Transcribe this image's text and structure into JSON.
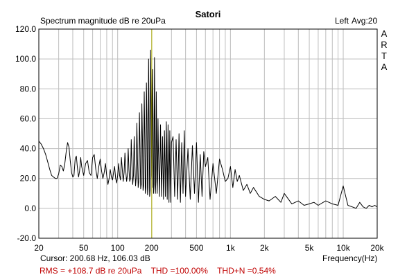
{
  "header": {
    "title": "Satori",
    "channel": "Left",
    "average": "Avg:20",
    "brand_letters": [
      "A",
      "R",
      "T",
      "A"
    ]
  },
  "cursor_readout": "Cursor: 200.68 Hz, 106.03 dB",
  "stats": {
    "rms": "RMS = +108.7 dB re 20uPa",
    "thd": "THD =100.00%",
    "thdn": "THD+N =0.54%"
  },
  "colors": {
    "trace": "#000000",
    "cursor": "#b4b400",
    "grid": "#bebebe",
    "stats_text": "#c00000"
  },
  "chart_data": {
    "type": "line",
    "title": "Satori",
    "ylabel": "Spectrum magnitude dB re 20uPa",
    "xlabel": "Frequency(Hz)",
    "x_scale": "log",
    "xlim": [
      20,
      20000
    ],
    "ylim": [
      -20,
      120
    ],
    "grid": true,
    "xticks": [
      {
        "value": 20,
        "label": "20"
      },
      {
        "value": 50,
        "label": "50"
      },
      {
        "value": 100,
        "label": "100"
      },
      {
        "value": 200,
        "label": "200"
      },
      {
        "value": 500,
        "label": "500"
      },
      {
        "value": 1000,
        "label": "1k"
      },
      {
        "value": 2000,
        "label": "2k"
      },
      {
        "value": 5000,
        "label": "5k"
      },
      {
        "value": 10000,
        "label": "10k"
      },
      {
        "value": 20000,
        "label": "20k"
      }
    ],
    "yticks": [
      {
        "value": 120,
        "label": "120.0"
      },
      {
        "value": 100,
        "label": "100.0"
      },
      {
        "value": 80,
        "label": "80.0"
      },
      {
        "value": 60,
        "label": "60.0"
      },
      {
        "value": 40,
        "label": "40.0"
      },
      {
        "value": 20,
        "label": "20.0"
      },
      {
        "value": 0,
        "label": "0.0"
      },
      {
        "value": -20,
        "label": "-20.0"
      }
    ],
    "cursor": {
      "x": 200.68,
      "y": 106.03
    },
    "series": [
      {
        "x": [
          20,
          21,
          22,
          23,
          24,
          25,
          26,
          27,
          28,
          29,
          30,
          31,
          32,
          33,
          34,
          35,
          36,
          37,
          38,
          39,
          40,
          41,
          42,
          43,
          44,
          45,
          46,
          47,
          48,
          50,
          52,
          54,
          56,
          58,
          60,
          62,
          64,
          66,
          68,
          70,
          72,
          74,
          76,
          78,
          80,
          82,
          84,
          86,
          88,
          90,
          92,
          94,
          96,
          98,
          100,
          102,
          104,
          106,
          108,
          110,
          112,
          114,
          116,
          118,
          120,
          122,
          124,
          126,
          128,
          130,
          132,
          134,
          136,
          138,
          140,
          142,
          144,
          146,
          148,
          150,
          152,
          154,
          156,
          158,
          160,
          162,
          164,
          166,
          168,
          170,
          172,
          174,
          176,
          178,
          180,
          182,
          184,
          186,
          188,
          190,
          192,
          194,
          196,
          198,
          200,
          202,
          204,
          206,
          208,
          210,
          212,
          214,
          216,
          218,
          220,
          222,
          224,
          226,
          228,
          230,
          235,
          240,
          245,
          250,
          255,
          260,
          265,
          270,
          275,
          280,
          285,
          290,
          295,
          300,
          310,
          320,
          330,
          340,
          350,
          360,
          370,
          380,
          390,
          400,
          420,
          440,
          460,
          480,
          500,
          520,
          540,
          560,
          580,
          600,
          630,
          660,
          700,
          750,
          800,
          850,
          900,
          950,
          1000,
          1050,
          1100,
          1150,
          1200,
          1300,
          1400,
          1500,
          1600,
          1800,
          2000,
          2200,
          2500,
          2800,
          3000,
          3500,
          4000,
          4500,
          5000,
          5500,
          6000,
          7000,
          8000,
          9000,
          10000,
          11000,
          12000,
          13000,
          14000,
          15000,
          16000,
          17000,
          18000,
          19000,
          20000
        ],
        "y": [
          45,
          43,
          40,
          36,
          31,
          26,
          22,
          21,
          20,
          20,
          23,
          29,
          28,
          25,
          30,
          38,
          44,
          41,
          32,
          24,
          21,
          22,
          33,
          35,
          27,
          21,
          25,
          34,
          28,
          22,
          30,
          32,
          24,
          22,
          34,
          36,
          26,
          20,
          28,
          33,
          25,
          20,
          24,
          30,
          22,
          16,
          20,
          26,
          21,
          19,
          24,
          28,
          20,
          17,
          22,
          30,
          22,
          19,
          34,
          26,
          18,
          24,
          37,
          25,
          18,
          22,
          40,
          26,
          18,
          20,
          46,
          28,
          16,
          22,
          48,
          30,
          15,
          20,
          57,
          34,
          14,
          18,
          64,
          40,
          13,
          16,
          70,
          46,
          12,
          15,
          78,
          50,
          10,
          14,
          84,
          58,
          9,
          14,
          100,
          60,
          8,
          12,
          106,
          70,
          22,
          14,
          93,
          62,
          10,
          16,
          101,
          64,
          10,
          18,
          78,
          48,
          10,
          20,
          60,
          40,
          8,
          56,
          8,
          48,
          6,
          52,
          8,
          58,
          6,
          56,
          4,
          52,
          4,
          44,
          48,
          8,
          46,
          6,
          50,
          4,
          44,
          10,
          52,
          8,
          40,
          6,
          42,
          10,
          44,
          4,
          36,
          8,
          38,
          28,
          34,
          6,
          30,
          10,
          33,
          26,
          18,
          20,
          28,
          14,
          26,
          18,
          22,
          12,
          16,
          10,
          14,
          8,
          6,
          5,
          8,
          4,
          10,
          3,
          5,
          2,
          3,
          4,
          2,
          5,
          3,
          2,
          15,
          2,
          1,
          0,
          4,
          1,
          0,
          2,
          1,
          2,
          1
        ]
      }
    ]
  }
}
